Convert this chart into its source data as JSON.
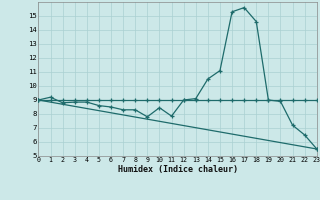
{
  "xlabel": "Humidex (Indice chaleur)",
  "bg_color": "#cce8e8",
  "grid_color": "#aad0d2",
  "line_color": "#1e6b6b",
  "xlim": [
    0,
    23
  ],
  "ylim": [
    5,
    16
  ],
  "yticks": [
    5,
    6,
    7,
    8,
    9,
    10,
    11,
    12,
    13,
    14,
    15
  ],
  "xticks": [
    0,
    1,
    2,
    3,
    4,
    5,
    6,
    7,
    8,
    9,
    10,
    11,
    12,
    13,
    14,
    15,
    16,
    17,
    18,
    19,
    20,
    21,
    22,
    23
  ],
  "curve1_x": [
    0,
    1,
    2,
    3,
    4,
    5,
    6,
    7,
    8,
    9,
    10,
    11,
    12,
    13,
    14,
    15,
    16,
    17,
    18,
    19,
    20,
    21,
    22,
    23
  ],
  "curve1_y": [
    9.0,
    9.2,
    8.8,
    8.85,
    8.85,
    8.6,
    8.5,
    8.3,
    8.3,
    7.8,
    8.45,
    7.85,
    9.0,
    9.1,
    10.5,
    11.1,
    15.3,
    15.6,
    14.6,
    9.0,
    8.9,
    7.2,
    6.5,
    5.5
  ],
  "curve2_x": [
    0,
    1,
    2,
    3,
    4,
    5,
    6,
    7,
    8,
    9,
    10,
    11,
    12,
    13,
    14,
    15,
    16,
    17,
    18,
    19,
    20,
    21,
    22,
    23
  ],
  "curve2_y": [
    9.0,
    9.0,
    9.0,
    9.0,
    9.0,
    9.0,
    9.0,
    9.0,
    9.0,
    9.0,
    9.0,
    9.0,
    9.0,
    9.0,
    9.0,
    9.0,
    9.0,
    9.0,
    9.0,
    9.0,
    9.0,
    9.0,
    9.0,
    9.0
  ],
  "curve3_x": [
    0,
    23
  ],
  "curve3_y": [
    9.0,
    5.5
  ]
}
